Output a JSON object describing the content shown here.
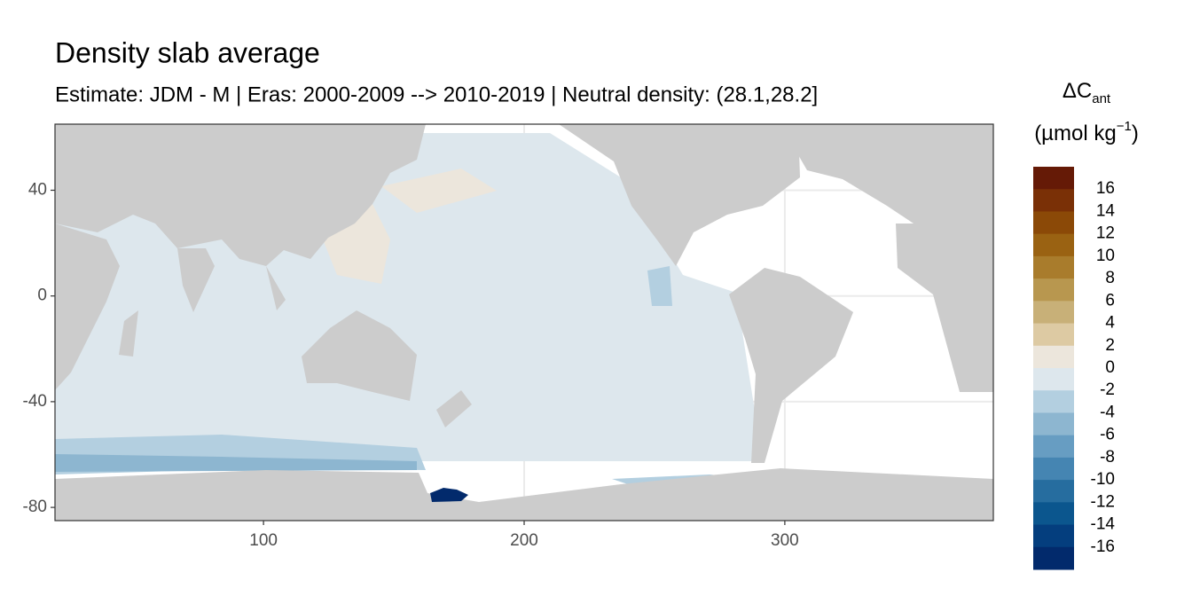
{
  "chart_data": {
    "type": "map",
    "title": "Density slab average",
    "subtitle": "Estimate: JDM - M | Eras: 2000-2009 --> 2010-2019 | Neutral density: (28.1,28.2]",
    "xlim": [
      20,
      380
    ],
    "ylim": [
      -85,
      65
    ],
    "xticks": [
      100,
      200,
      300
    ],
    "yticks": [
      40,
      0,
      -40,
      -80
    ],
    "grid": true,
    "land_color": "#cccccc",
    "legend": {
      "title": {
        "symbol": "ΔC",
        "subscript": "ant",
        "unit": "(µmol kg",
        "superscript": "−1",
        "close": ")"
      },
      "breaks": [
        16,
        14,
        12,
        10,
        8,
        6,
        4,
        2,
        0,
        -2,
        -4,
        -6,
        -8,
        -10,
        -12,
        -14,
        -16
      ],
      "colors": [
        "#651a06",
        "#7a3006",
        "#8b4907",
        "#9a6212",
        "#a97c2c",
        "#b8974f",
        "#c8b078",
        "#ddcaa3",
        "#ece6dc",
        "#dde7ed",
        "#b3cfe0",
        "#8db6d0",
        "#679dc2",
        "#4585b2",
        "#266d9f",
        "#0b568e",
        "#043e7e",
        "#022a6c"
      ]
    }
  }
}
